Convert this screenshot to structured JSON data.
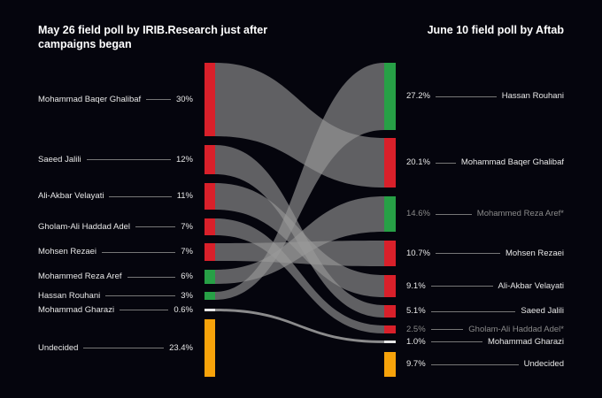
{
  "titles": {
    "left": "May 26 field poll by IRIB.Research just after campaigns began",
    "right": "June 10 field poll by Aftab"
  },
  "colors": {
    "background": "#05050d",
    "conservative": "#d9202a",
    "reformist": "#27a046",
    "undecided": "#f7a30a",
    "other": "#e6e6e6",
    "flow": "#9a9a9a"
  },
  "chart_data": {
    "type": "sankey",
    "left_nodes": [
      {
        "name": "Mohammad Baqer Ghalibaf",
        "pct": "30%",
        "value": 30,
        "color": "#d9202a"
      },
      {
        "name": "Saeed Jalili",
        "pct": "12%",
        "value": 12,
        "color": "#d9202a"
      },
      {
        "name": "Ali-Akbar Velayati",
        "pct": "11%",
        "value": 11,
        "color": "#d9202a"
      },
      {
        "name": "Gholam-Ali Haddad Adel",
        "pct": "7%",
        "value": 7,
        "color": "#d9202a"
      },
      {
        "name": "Mohsen Rezaei",
        "pct": "7%",
        "value": 7,
        "color": "#d9202a"
      },
      {
        "name": "Mohammed Reza Aref",
        "pct": "6%",
        "value": 6,
        "color": "#27a046"
      },
      {
        "name": "Hassan Rouhani",
        "pct": "3%",
        "value": 3,
        "color": "#27a046"
      },
      {
        "name": "Mohammad Gharazi",
        "pct": "0.6%",
        "value": 0.6,
        "color": "#e6e6e6"
      },
      {
        "name": "Undecided",
        "pct": "23.4%",
        "value": 23.4,
        "color": "#f7a30a"
      }
    ],
    "right_nodes": [
      {
        "name": "Hassan Rouhani",
        "pct": "27.2%",
        "value": 27.2,
        "color": "#27a046",
        "muted": false
      },
      {
        "name": "Mohammad Baqer Ghalibaf",
        "pct": "20.1%",
        "value": 20.1,
        "color": "#d9202a",
        "muted": false
      },
      {
        "name": "Mohammed Reza Aref*",
        "pct": "14.6%",
        "value": 14.6,
        "color": "#27a046",
        "muted": true
      },
      {
        "name": "Mohsen Rezaei",
        "pct": "10.7%",
        "value": 10.7,
        "color": "#d9202a",
        "muted": false
      },
      {
        "name": "Ali-Akbar Velayati",
        "pct": "9.1%",
        "value": 9.1,
        "color": "#d9202a",
        "muted": false
      },
      {
        "name": "Saeed Jalili",
        "pct": "5.1%",
        "value": 5.1,
        "color": "#d9202a",
        "muted": false
      },
      {
        "name": "Gholam-Ali Haddad Adel*",
        "pct": "2.5%",
        "value": 2.5,
        "color": "#d9202a",
        "muted": true
      },
      {
        "name": "Mohammad Gharazi",
        "pct": "1.0%",
        "value": 1.0,
        "color": "#e6e6e6",
        "muted": false
      },
      {
        "name": "Undecided",
        "pct": "9.7%",
        "value": 9.7,
        "color": "#f7a30a",
        "muted": false
      }
    ],
    "flows": [
      {
        "from": "Mohammad Baqer Ghalibaf",
        "to": "Mohammad Baqer Ghalibaf"
      },
      {
        "from": "Saeed Jalili",
        "to": "Saeed Jalili"
      },
      {
        "from": "Ali-Akbar Velayati",
        "to": "Ali-Akbar Velayati"
      },
      {
        "from": "Gholam-Ali Haddad Adel",
        "to": "Gholam-Ali Haddad Adel*"
      },
      {
        "from": "Mohsen Rezaei",
        "to": "Mohsen Rezaei"
      },
      {
        "from": "Mohammed Reza Aref",
        "to": "Mohammed Reza Aref*"
      },
      {
        "from": "Hassan Rouhani",
        "to": "Hassan Rouhani"
      },
      {
        "from": "Mohammad Gharazi",
        "to": "Mohammad Gharazi"
      }
    ]
  }
}
